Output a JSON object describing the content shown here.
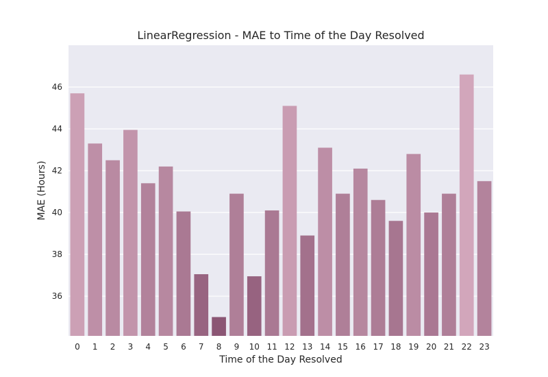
{
  "chart_data": {
    "type": "bar",
    "title": "LinearRegression - MAE to Time of the Day Resolved",
    "xlabel": "Time of the Day Resolved",
    "ylabel": "MAE (Hours)",
    "categories": [
      "0",
      "1",
      "2",
      "3",
      "4",
      "5",
      "6",
      "7",
      "8",
      "9",
      "10",
      "11",
      "12",
      "13",
      "14",
      "15",
      "16",
      "17",
      "18",
      "19",
      "20",
      "21",
      "22",
      "23"
    ],
    "values": [
      45.7,
      43.3,
      42.5,
      43.95,
      41.4,
      42.2,
      40.05,
      37.05,
      35.0,
      40.9,
      36.95,
      40.1,
      45.1,
      38.9,
      43.1,
      40.9,
      42.1,
      40.6,
      39.6,
      42.8,
      40.0,
      40.9,
      46.6,
      41.5
    ],
    "ylim": [
      34.1,
      48.0
    ],
    "yticks": [
      36,
      38,
      40,
      42,
      44,
      46
    ],
    "grid": true,
    "colors": {
      "background": "#eaeaf2",
      "grid": "#ffffff",
      "bar_low": "#8b5674",
      "bar_high": "#d2a6bb"
    }
  }
}
